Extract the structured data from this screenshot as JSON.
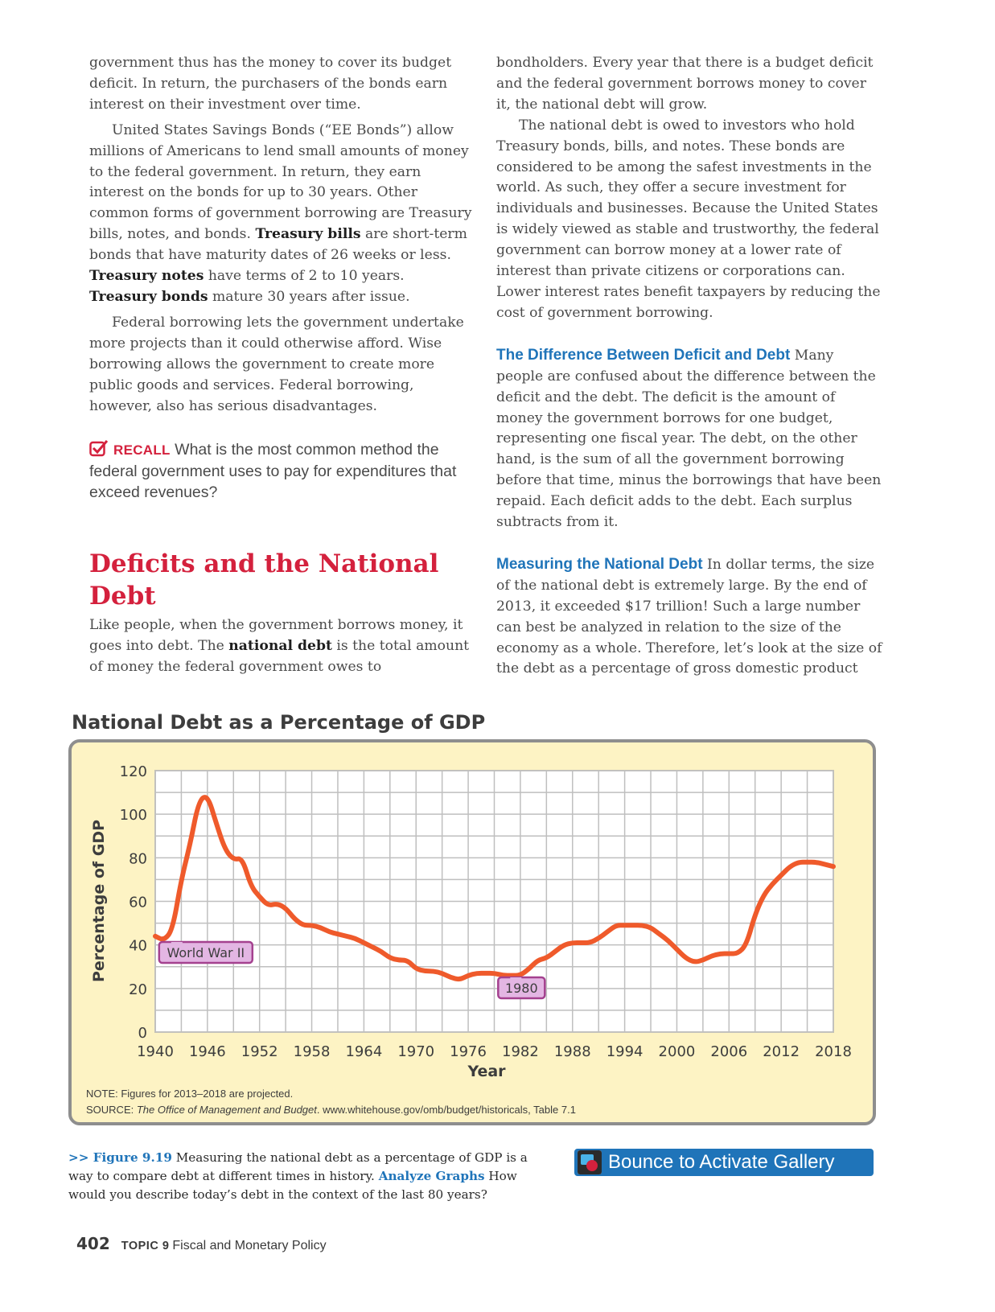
{
  "left_column": {
    "p1": "government thus has the money to cover its budget deficit. In return, the purchasers of the bonds earn interest on their investment over time.",
    "p2_a": "United States Savings Bonds (“EE Bonds”) allow millions of Americans to lend small amounts of money to the federal government. In return, they earn interest on the bonds for up to 30 years. Other common forms of government borrowing are Treasury bills, notes, and bonds. ",
    "p2_b1": "Treasury bills",
    "p2_c": " are short-term bonds that have maturity dates of 26 weeks or less. ",
    "p2_b2": "Treasury notes",
    "p2_d": " have terms of 2 to 10 years. ",
    "p2_b3": "Treasury bonds",
    "p2_e": " mature 30 years after issue.",
    "p3": "Federal borrowing lets the government undertake more projects than it could otherwise afford. Wise borrowing allows the government to create more public goods and services. Federal borrowing, however, also has serious disadvantages.",
    "recall_label": "RECALL",
    "recall_text": " What is the most common method the federal government uses to pay for expenditures that exceed revenues?",
    "heading": "Deficits and the National Debt",
    "p4_a": "Like people, when the government borrows money, it goes into debt. The ",
    "p4_b": "national debt",
    "p4_c": " is the total amount of money the federal government owes to"
  },
  "right_column": {
    "p1": "bondholders. Every year that there is a budget deficit and the federal government borrows money to cover it, the national debt will grow.",
    "p2": "The national debt is owed to investors who hold Treasury bonds, bills, and notes. These bonds are considered to be among the safest investments in the world. As such, they offer a secure investment for individuals and businesses. Because the United States is widely viewed as stable and trustworthy, the federal government can borrow money at a lower rate of interest than private citizens or corporations can. Lower interest rates benefit taxpayers by reducing the cost of government borrowing.",
    "sub1": "The Difference Between Deficit and Debt",
    "p3": " Many people are confused about the difference between the deficit and the debt. The deficit is the amount of money the government borrows for one budget, representing one fiscal year. The debt, on the other hand, is the sum of all the government borrowing before that time, minus the borrowings that have been repaid. Each deficit adds to the debt. Each surplus subtracts from it.",
    "sub2": "Measuring the National Debt",
    "p4": " In dollar terms, the size of the national debt is extremely large. By the end of 2013, it exceeded $17 trillion! Such a large number can best be analyzed in relation to the size of the economy as a whole. Therefore, let’s look at the size of the debt as a percentage of gross domestic product"
  },
  "chart_data": {
    "type": "line",
    "title": "National Debt as a Percentage of GDP",
    "xlabel": "Year",
    "ylabel": "Percentage of GDP",
    "xlim": [
      1940,
      2018
    ],
    "ylim": [
      0,
      120
    ],
    "x_ticks": [
      "1940",
      "1946",
      "1952",
      "1958",
      "1964",
      "1970",
      "1976",
      "1982",
      "1988",
      "1994",
      "2000",
      "2006",
      "2012",
      "2018"
    ],
    "y_ticks": [
      "0",
      "20",
      "40",
      "60",
      "80",
      "100",
      "120"
    ],
    "grid": true,
    "line_color": "#ef5a2b",
    "x": [
      1940,
      1941,
      1942,
      1943,
      1944,
      1945,
      1946,
      1947,
      1948,
      1949,
      1950,
      1951,
      1952,
      1953,
      1954,
      1955,
      1956,
      1957,
      1958,
      1959,
      1960,
      1961,
      1962,
      1963,
      1964,
      1965,
      1966,
      1967,
      1968,
      1969,
      1970,
      1971,
      1972,
      1973,
      1974,
      1975,
      1976,
      1977,
      1978,
      1979,
      1980,
      1981,
      1982,
      1983,
      1984,
      1985,
      1986,
      1987,
      1988,
      1989,
      1990,
      1991,
      1992,
      1993,
      1994,
      1995,
      1996,
      1997,
      1998,
      1999,
      2000,
      2001,
      2002,
      2003,
      2004,
      2005,
      2006,
      2007,
      2008,
      2009,
      2010,
      2011,
      2012,
      2013,
      2014,
      2015,
      2016,
      2017,
      2018
    ],
    "y": [
      44,
      42,
      47,
      70,
      86,
      106,
      109,
      96,
      84,
      79,
      80,
      67,
      62,
      58,
      59,
      57,
      52,
      49,
      49,
      48,
      46,
      45,
      44,
      43,
      41,
      39,
      37,
      34,
      33,
      33,
      29,
      28,
      28,
      27,
      25,
      24,
      26,
      27,
      27,
      27,
      26,
      26,
      26,
      29,
      33,
      34,
      37,
      40,
      41,
      41,
      41,
      43,
      46,
      49,
      49,
      49,
      49,
      48,
      45,
      42,
      38,
      34,
      32,
      33,
      35,
      36,
      36,
      36,
      40,
      54,
      63,
      68,
      72,
      76,
      78,
      78,
      78,
      77,
      76
    ],
    "annotations": [
      {
        "label": "World War II",
        "x": 1941,
        "y": 42
      },
      {
        "label": "1980",
        "x": 1980,
        "y": 26
      }
    ],
    "note": "NOTE: Figures for 2013–2018 are projected.",
    "source_prefix": "SOURCE: ",
    "source_title": "The Office of Management and Budget",
    "source_rest": ". www.whitehouse.gov/omb/budget/historicals, Table 7.1"
  },
  "caption": {
    "arrows": ">> ",
    "figure_label": "Figure 9.19",
    "text_a": " Measuring the national debt as a percentage of GDP is a way to compare debt at different times in history. ",
    "analyze_label": "Analyze Graphs",
    "text_b": "  How would you describe today’s debt in the context of the last 80 years?"
  },
  "bounce": {
    "label": "Bounce to Activate Gallery",
    "icon": "gallery-icon"
  },
  "footer": {
    "page_number": "402",
    "topic": "TOPIC 9",
    "title": "Fiscal and Monetary Policy"
  },
  "colors": {
    "red": "#d4213d",
    "blue": "#1f74b9",
    "chart_bg": "#fdf3c4",
    "callout_fill": "#e3b6e3",
    "callout_stroke": "#a4418f"
  }
}
